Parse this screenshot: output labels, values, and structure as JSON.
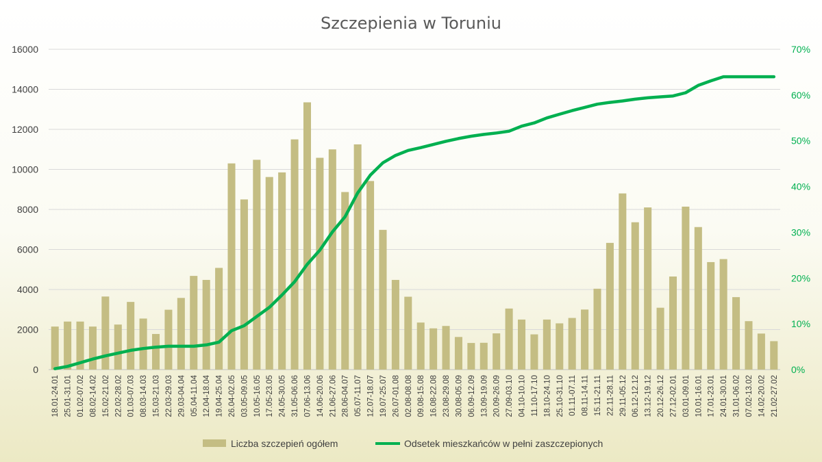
{
  "chart_data": {
    "type": "bar+line",
    "title": "Szczepienia w Toruniu",
    "categories": [
      "18.01-24.01",
      "25.01-31.01",
      "01.02-07.02",
      "08.02-14.02",
      "15.02-21.02",
      "22.02-28.02",
      "01.03-07.03",
      "08.03-14.03",
      "15.03-21.03",
      "22.03-29.03",
      "29.03-04.04",
      "05.04-11.04",
      "12.04-18.04",
      "19.04-25.04",
      "26.04-02.05",
      "03.05-09.05",
      "10.05-16.05",
      "17.05-23.05",
      "24.05-30.05",
      "31.05-06.06",
      "07.06-13.06",
      "14.06-20.06",
      "21.06-27.06",
      "28.06-04.07",
      "05.07-11.07",
      "12.07-18.07",
      "19.07-25.07",
      "26.07-01.08",
      "02.08-08.08",
      "09.08-15.08",
      "16.08-22.08",
      "23.08-29.08",
      "30.08-05.09",
      "06.09-12.09",
      "13.09-19.09",
      "20.09-26.09",
      "27.09-03.10",
      "04.10-10.10",
      "11.10-17.10",
      "18.10-24.10",
      "25.10-31.10",
      "01.11-07.11",
      "08.11-14.11",
      "15.11-21.11",
      "22.11-28.11",
      "29.11-05.12",
      "06.12-12.12",
      "13.12-19.12",
      "20.12-26.12",
      "27.12-02.01",
      "03.01-09.01",
      "10.01-16.01",
      "17.01-23.01",
      "24.01-30.01",
      "31.01-06.02",
      "07.02-13.02",
      "14.02-20.02",
      "21.02-27.02"
    ],
    "series": [
      {
        "name": "Liczba szczepień ogółem",
        "type": "bar",
        "axis": "left",
        "color": "#c4bd83",
        "values": [
          2150,
          2400,
          2400,
          2150,
          3650,
          2250,
          3380,
          2550,
          1780,
          2990,
          3580,
          4680,
          4480,
          5080,
          10300,
          8500,
          10480,
          9620,
          9850,
          11500,
          13350,
          10580,
          11000,
          8870,
          11250,
          9420,
          6980,
          4480,
          3640,
          2350,
          2060,
          2180,
          1630,
          1330,
          1340,
          1810,
          3050,
          2500,
          1760,
          2500,
          2310,
          2580,
          3000,
          4040,
          6330,
          8800,
          7360,
          8100,
          3090,
          4650,
          8140,
          7120,
          5370,
          5520,
          3620,
          2420,
          1800,
          1420
        ]
      },
      {
        "name": "Odsetek mieszkańców w pełni zaszczepionych",
        "type": "line",
        "axis": "right",
        "color": "#00b050",
        "values": [
          0.2,
          0.7,
          1.5,
          2.3,
          3.0,
          3.6,
          4.2,
          4.6,
          4.9,
          5.1,
          5.1,
          5.1,
          5.4,
          6.0,
          8.5,
          9.6,
          11.6,
          13.6,
          16.3,
          19.2,
          23.0,
          26.1,
          30.1,
          33.4,
          38.6,
          42.5,
          45.2,
          46.8,
          47.9,
          48.5,
          49.2,
          49.9,
          50.5,
          51.0,
          51.4,
          51.7,
          52.1,
          53.2,
          53.9,
          55.0,
          55.8,
          56.6,
          57.3,
          58.0,
          58.4,
          58.7,
          59.1,
          59.4,
          59.6,
          59.8,
          60.5,
          62.1,
          63.1,
          64.0,
          64.0,
          64.0,
          64.0,
          64.0
        ]
      }
    ],
    "y_axis": {
      "min": 0,
      "max": 16000,
      "ticks": [
        "0",
        "2000",
        "4000",
        "6000",
        "8000",
        "10000",
        "12000",
        "14000",
        "16000"
      ]
    },
    "y2_axis": {
      "min": 0,
      "max": 70,
      "ticks": [
        "0%",
        "10%",
        "20%",
        "30%",
        "40%",
        "50%",
        "60%",
        "70%"
      ]
    },
    "legend_position": "bottom",
    "grid": true
  }
}
